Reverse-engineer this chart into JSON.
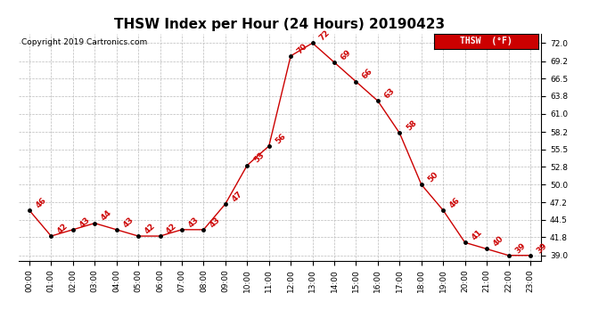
{
  "title": "THSW Index per Hour (24 Hours) 20190423",
  "copyright": "Copyright 2019 Cartronics.com",
  "legend_label": "THSW  (°F)",
  "hours": [
    0,
    1,
    2,
    3,
    4,
    5,
    6,
    7,
    8,
    9,
    10,
    11,
    12,
    13,
    14,
    15,
    16,
    17,
    18,
    19,
    20,
    21,
    22,
    23
  ],
  "values": [
    46,
    42,
    43,
    44,
    43,
    42,
    42,
    43,
    43,
    47,
    53,
    56,
    70,
    72,
    69,
    66,
    63,
    58,
    50,
    46,
    41,
    40,
    39,
    39
  ],
  "x_labels": [
    "00:00",
    "01:00",
    "02:00",
    "03:00",
    "04:00",
    "05:00",
    "06:00",
    "07:00",
    "08:00",
    "09:00",
    "10:00",
    "11:00",
    "12:00",
    "13:00",
    "14:00",
    "15:00",
    "16:00",
    "17:00",
    "18:00",
    "19:00",
    "20:00",
    "21:00",
    "22:00",
    "23:00"
  ],
  "y_ticks": [
    39.0,
    41.8,
    44.5,
    47.2,
    50.0,
    52.8,
    55.5,
    58.2,
    61.0,
    63.8,
    66.5,
    69.2,
    72.0
  ],
  "ylim": [
    38.2,
    73.5
  ],
  "line_color": "#cc0000",
  "marker_color": "#000000",
  "label_color": "#cc0000",
  "background_color": "#ffffff",
  "grid_color": "#bbbbbb",
  "title_fontsize": 11,
  "copyright_fontsize": 6.5,
  "label_fontsize": 6.5,
  "tick_fontsize": 6.5,
  "legend_bg": "#cc0000",
  "legend_text_color": "#ffffff"
}
